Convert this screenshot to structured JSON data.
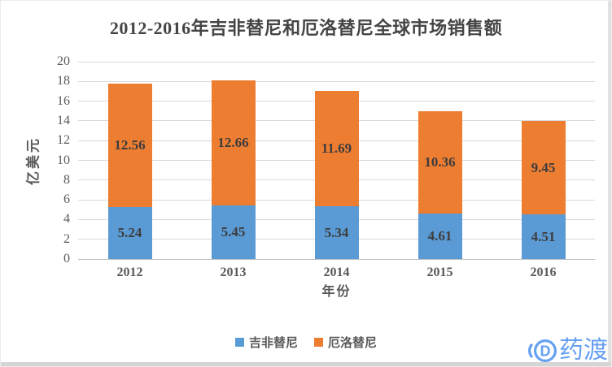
{
  "chart_data": {
    "type": "bar",
    "stacked": true,
    "title": "2012-2016年吉非替尼和厄洛替尼全球市场销售额",
    "categories": [
      "2012",
      "2013",
      "2014",
      "2015",
      "2016"
    ],
    "series": [
      {
        "name": "吉非替尼",
        "color": "#5B9BD5",
        "values": [
          5.24,
          5.45,
          5.34,
          4.61,
          4.51
        ]
      },
      {
        "name": "厄洛替尼",
        "color": "#ED7D31",
        "values": [
          12.56,
          12.66,
          11.69,
          10.36,
          9.45
        ]
      }
    ],
    "xlabel": "年份",
    "ylabel": "亿美元",
    "ylim": [
      0,
      20
    ],
    "yticks": [
      0,
      2,
      4,
      6,
      8,
      10,
      12,
      14,
      16,
      18,
      20
    ],
    "grid": true,
    "legend_position": "bottom",
    "colors": {
      "title": "#454545",
      "tick_labels": "#595959",
      "data_labels": "#3d3d3d",
      "gridline": "#D9D9D9",
      "axis_line": "#BFBFBF"
    }
  },
  "watermark": {
    "text": "药渡",
    "icon": "yaodu-logo-icon",
    "color": "#66A0F2"
  }
}
